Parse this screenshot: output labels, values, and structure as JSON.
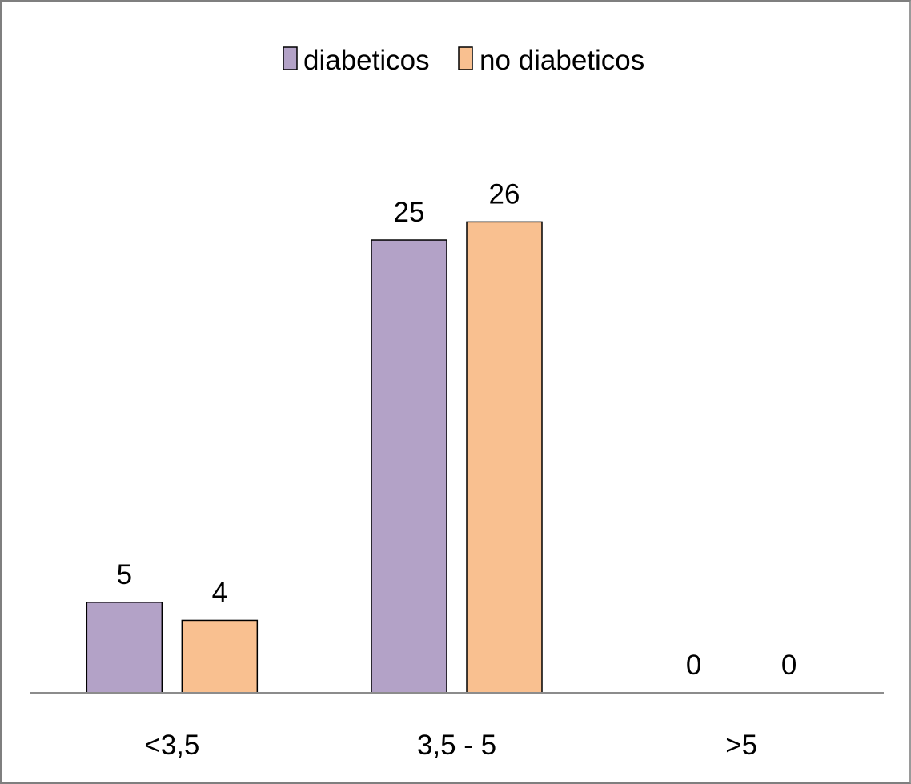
{
  "chart_data": {
    "type": "bar",
    "categories": [
      "<3,5",
      "3,5 - 5",
      ">5"
    ],
    "series": [
      {
        "name": "diabeticos",
        "values": [
          5,
          25,
          0
        ],
        "color": "#b3a2c7"
      },
      {
        "name": "no diabeticos",
        "values": [
          4,
          26,
          0
        ],
        "color": "#f9c090"
      }
    ],
    "ylim": [
      0,
      28.8
    ],
    "show_data_labels": true,
    "legend_position": "top-center",
    "grid": false,
    "y_axis_visible": false
  }
}
